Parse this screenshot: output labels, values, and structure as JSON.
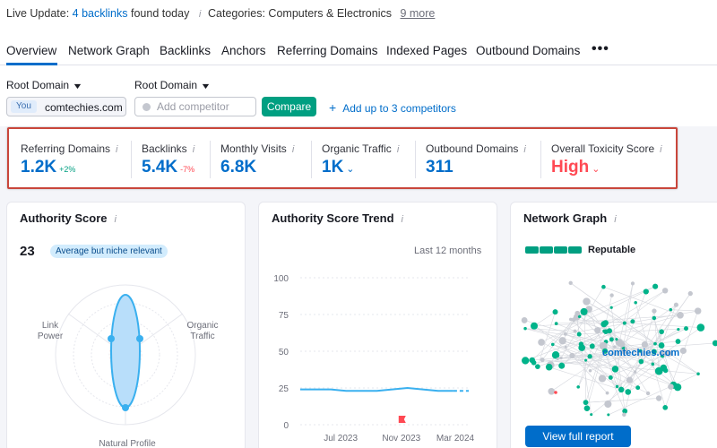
{
  "topbar": {
    "live_prefix": "Live Update:",
    "live_link": "4 backlinks",
    "live_suffix": "found today",
    "info_glyph": "i",
    "categories_prefix": "Categories:",
    "categories_value": "Computers & Electronics",
    "categories_more": "9 more"
  },
  "tabs": [
    {
      "label": "Overview",
      "active": true
    },
    {
      "label": "Network Graph"
    },
    {
      "label": "Backlinks"
    },
    {
      "label": "Anchors"
    },
    {
      "label": "Referring Domains"
    },
    {
      "label": "Indexed Pages"
    },
    {
      "label": "Outbound Domains"
    }
  ],
  "tabs_more": "•••",
  "controls": {
    "dropdown1": "Root Domain",
    "dropdown2": "Root Domain",
    "you_badge": "You",
    "you_domain": "comtechies.com",
    "competitor_placeholder": "Add competitor",
    "compare_label": "Compare",
    "add_plus": "+",
    "add_competitors": "Add up to 3 competitors"
  },
  "metrics": [
    {
      "label": "Referring Domains",
      "value": "1.2K",
      "delta": "+2%",
      "trend": "pos"
    },
    {
      "label": "Backlinks",
      "value": "5.4K",
      "delta": "-7%",
      "trend": "neg"
    },
    {
      "label": "Monthly Visits",
      "value": "6.8K"
    },
    {
      "label": "Organic Traffic",
      "value": "1K",
      "dropdown": true
    },
    {
      "label": "Outbound Domains",
      "value": "311"
    },
    {
      "label": "Overall Toxicity Score",
      "value": "High",
      "dropdown": true,
      "status": "high"
    }
  ],
  "colors": {
    "accent": "#006dca",
    "positive": "#009f81",
    "negative": "#ff4953",
    "highlight_border": "#c9463b",
    "trend_line": "#3ab0ef",
    "radar_fill": "#b8defa"
  },
  "authority": {
    "title": "Authority Score",
    "score": "23",
    "badge": "Average but niche relevant",
    "axis_link": [
      "Link",
      "Power"
    ],
    "axis_organic": [
      "Organic",
      "Traffic"
    ],
    "axis_natural": "Natural Profile"
  },
  "trend": {
    "title": "Authority Score Trend",
    "period": "Last 12 months",
    "chart_data": {
      "type": "line",
      "y_ticks": [
        "100",
        "75",
        "50",
        "25",
        "0"
      ],
      "x_ticks": [
        "Jul 2023",
        "Nov 2023",
        "Mar 2024"
      ],
      "ylim": [
        0,
        100
      ],
      "x": [
        0,
        1,
        2,
        3,
        4,
        5,
        6,
        7,
        8,
        9,
        10,
        11
      ],
      "values": [
        24,
        24,
        24,
        23,
        23,
        23,
        24,
        25,
        24,
        23,
        23,
        23
      ],
      "marker": {
        "label": "Nov 2023",
        "color": "#ff4953"
      }
    }
  },
  "network": {
    "title": "Network Graph",
    "reputation": "Reputable",
    "domain": "comtechies.com",
    "view_label": "View full report"
  }
}
